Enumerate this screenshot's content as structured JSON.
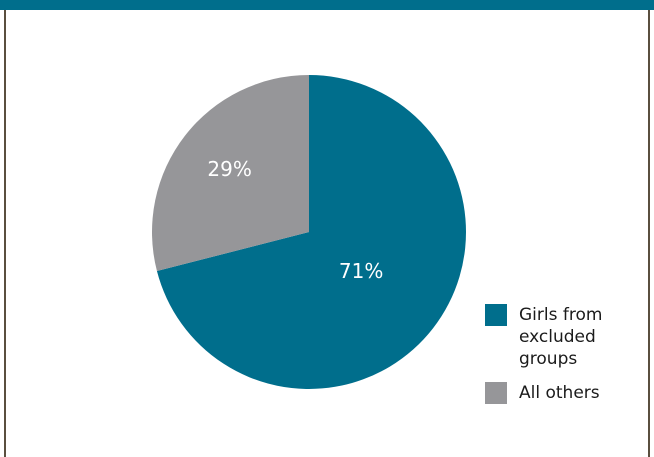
{
  "colors": {
    "primary": "#006e8c",
    "secondary": "#969699",
    "header_bar": "#006e8c"
  },
  "chart_data": {
    "type": "pie",
    "title": "",
    "categories": [
      "Girls from excluded groups",
      "All others"
    ],
    "values": [
      71,
      29
    ],
    "value_labels": [
      "71%",
      "29%"
    ],
    "colors": [
      "#006e8c",
      "#969699"
    ],
    "start_angle_deg": 0,
    "direction": "clockwise",
    "legend_position": "right-bottom"
  },
  "legend": {
    "items": [
      {
        "label": "Girls from excluded groups",
        "color": "#006e8c"
      },
      {
        "label": "All others",
        "color": "#969699"
      }
    ]
  }
}
